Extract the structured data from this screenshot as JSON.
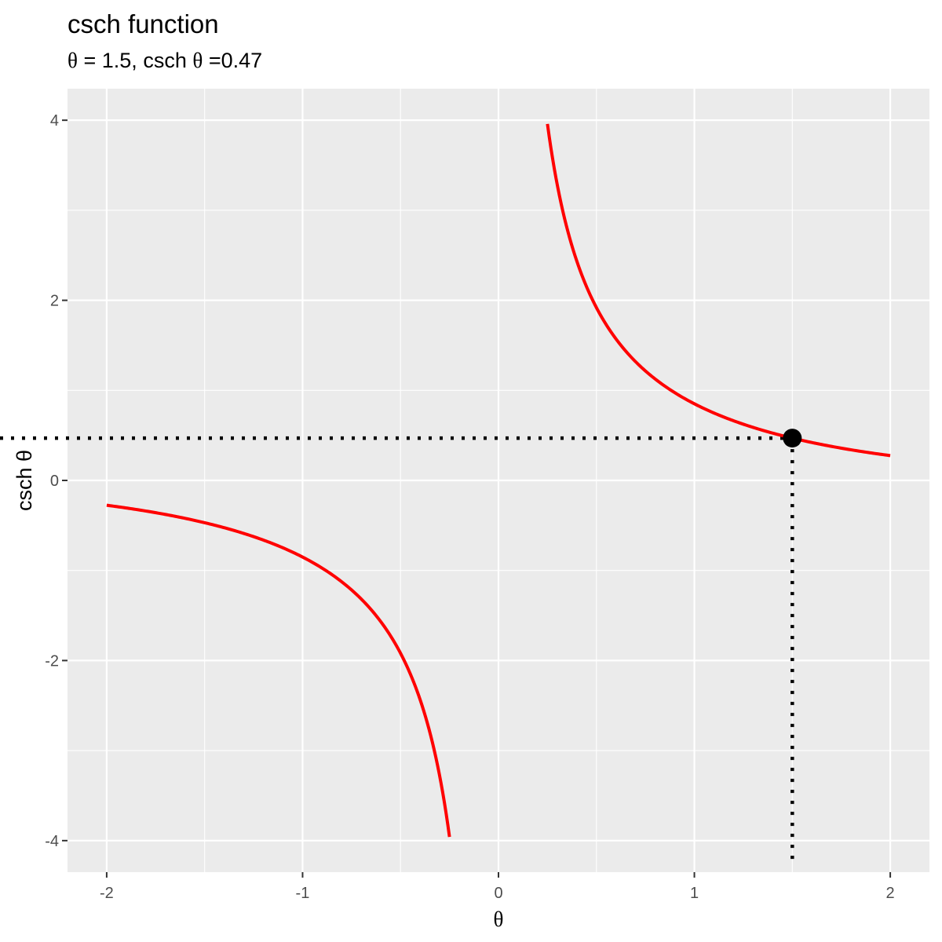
{
  "chart_data": {
    "type": "line",
    "title": "csch function",
    "subtitle": {
      "theta_symbol": "θ",
      "equals": "=",
      "theta_value": "1.5,",
      "fn_label": "csch",
      "fn_value": "0.47"
    },
    "xlabel": "θ",
    "ylabel": "csch θ",
    "xlim": [
      -2.2,
      2.2
    ],
    "ylim": [
      -4.35,
      4.35
    ],
    "x_ticks": [
      -2,
      -1,
      0,
      1,
      2
    ],
    "x_tick_labels": [
      "-2",
      "-1",
      "0",
      "1",
      "2"
    ],
    "y_ticks": [
      -4,
      -2,
      0,
      2,
      4
    ],
    "y_tick_labels": [
      "-4",
      "-2",
      "0",
      "2",
      "4"
    ],
    "grid": true,
    "series": [
      {
        "x": [
          -2.0,
          -1.75,
          -1.5,
          -1.25,
          -1.0,
          -0.9,
          -0.8,
          -0.7,
          -0.6,
          -0.5,
          -0.45,
          -0.4,
          -0.35,
          -0.3,
          -0.25
        ],
        "y": [
          -0.276,
          -0.364,
          -0.47,
          -0.623,
          -0.851,
          -0.976,
          -1.125,
          -1.318,
          -1.57,
          -1.919,
          -2.151,
          -2.433,
          -2.788,
          -3.283,
          -3.959
        ],
        "color": "#ff0000"
      },
      {
        "x": [
          0.25,
          0.3,
          0.35,
          0.4,
          0.45,
          0.5,
          0.6,
          0.7,
          0.8,
          0.9,
          1.0,
          1.25,
          1.5,
          1.75,
          2.0
        ],
        "y": [
          3.959,
          3.283,
          2.788,
          2.433,
          2.151,
          1.919,
          1.57,
          1.318,
          1.125,
          0.976,
          0.851,
          0.623,
          0.47,
          0.364,
          0.276
        ],
        "color": "#ff0000"
      }
    ],
    "highlight_point": {
      "x": 1.5,
      "y": 0.47,
      "color": "#000000"
    },
    "background": "#ebebeb",
    "grid_color": "#ffffff"
  }
}
